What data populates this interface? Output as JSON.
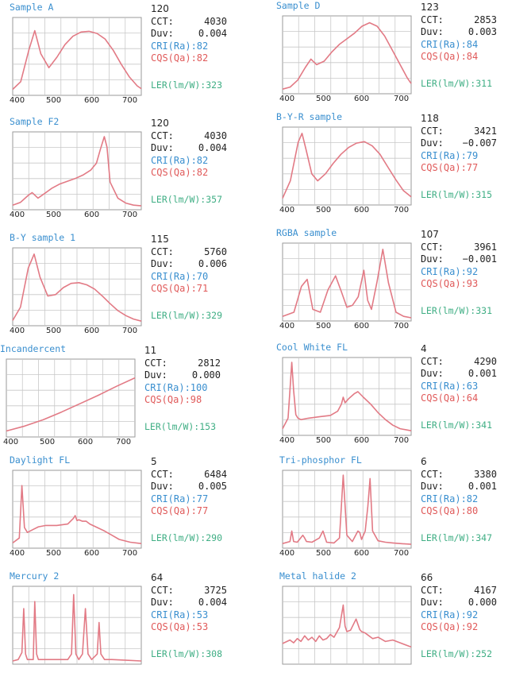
{
  "chart_data": [
    {
      "type": "line",
      "title": "Sample A",
      "xticks": [
        "400",
        "500",
        "600",
        "700"
      ],
      "xlim": [
        400,
        720
      ],
      "x": [
        400,
        420,
        440,
        455,
        470,
        490,
        510,
        530,
        550,
        570,
        590,
        610,
        630,
        650,
        670,
        690,
        710,
        720
      ],
      "y": [
        0.04,
        0.15,
        0.6,
        0.88,
        0.55,
        0.35,
        0.5,
        0.68,
        0.8,
        0.86,
        0.87,
        0.84,
        0.76,
        0.6,
        0.4,
        0.22,
        0.09,
        0.05
      ],
      "index": "120",
      "cct": "4030",
      "duv": "0.004",
      "cri": "CRI(Ra):82",
      "cqs": "CQS(Qa):82",
      "ler": "LER(lm/W):323"
    },
    {
      "type": "line",
      "title": "Sample D",
      "xticks": [
        "400",
        "500",
        "600",
        "700"
      ],
      "xlim": [
        380,
        720
      ],
      "x": [
        380,
        400,
        420,
        440,
        455,
        470,
        490,
        510,
        530,
        550,
        570,
        590,
        610,
        630,
        650,
        670,
        690,
        710,
        720
      ],
      "y": [
        0.02,
        0.05,
        0.15,
        0.33,
        0.45,
        0.37,
        0.42,
        0.55,
        0.66,
        0.74,
        0.82,
        0.92,
        0.97,
        0.92,
        0.78,
        0.58,
        0.38,
        0.18,
        0.1
      ],
      "index": "123",
      "cct": "2853",
      "duv": "0.003",
      "cri": "CRI(Ra):84",
      "cqs": "CQS(Qa):84",
      "ler": "LER(lm/W):311"
    },
    {
      "type": "line",
      "title": "Sample F2",
      "xticks": [
        "400",
        "500",
        "600",
        "700"
      ],
      "xlim": [
        390,
        720
      ],
      "x": [
        390,
        410,
        430,
        440,
        455,
        470,
        490,
        510,
        530,
        550,
        570,
        590,
        605,
        615,
        625,
        632,
        640,
        660,
        680,
        700,
        720
      ],
      "y": [
        0.02,
        0.06,
        0.16,
        0.2,
        0.12,
        0.18,
        0.26,
        0.32,
        0.36,
        0.4,
        0.45,
        0.52,
        0.62,
        0.82,
        1.0,
        0.85,
        0.35,
        0.12,
        0.05,
        0.02,
        0.01
      ],
      "index": "120",
      "cct": "4030",
      "duv": "0.004",
      "cri": "CRI(Ra):82",
      "cqs": "CQS(Qa):82",
      "ler": "LER(lm/W):357"
    },
    {
      "type": "line",
      "title": "B-Y-R sample",
      "xticks": [
        "400",
        "500",
        "600",
        "700"
      ],
      "xlim": [
        400,
        730
      ],
      "x": [
        400,
        420,
        440,
        450,
        460,
        475,
        490,
        510,
        530,
        550,
        570,
        590,
        610,
        630,
        650,
        670,
        690,
        710,
        730
      ],
      "y": [
        0.05,
        0.3,
        0.85,
        0.98,
        0.75,
        0.4,
        0.3,
        0.4,
        0.55,
        0.68,
        0.78,
        0.84,
        0.86,
        0.8,
        0.68,
        0.5,
        0.32,
        0.16,
        0.07
      ],
      "index": "118",
      "cct": "3421",
      "duv": "−0.007",
      "cri": "CRI(Ra):79",
      "cqs": "CQS(Qa):77",
      "ler": "LER(lm/W):315"
    },
    {
      "type": "line",
      "title": "B-Y sample 1",
      "xticks": [
        "400",
        "500",
        "600",
        "700"
      ],
      "xlim": [
        390,
        720
      ],
      "x": [
        390,
        410,
        430,
        445,
        460,
        480,
        500,
        520,
        540,
        560,
        580,
        600,
        620,
        640,
        660,
        680,
        700,
        720
      ],
      "y": [
        0.03,
        0.22,
        0.78,
        0.98,
        0.65,
        0.38,
        0.4,
        0.5,
        0.56,
        0.57,
        0.54,
        0.48,
        0.38,
        0.27,
        0.17,
        0.1,
        0.05,
        0.02
      ],
      "index": "115",
      "cct": "5760",
      "duv": "0.006",
      "cri": "CRI(Ra):70",
      "cqs": "CQS(Qa):71",
      "ler": "LER(lm/W):329"
    },
    {
      "type": "line",
      "title": "RGBA sample",
      "xticks": [
        "400",
        "500",
        "600",
        "700"
      ],
      "xlim": [
        390,
        730
      ],
      "x": [
        390,
        420,
        440,
        455,
        470,
        490,
        510,
        530,
        545,
        560,
        575,
        590,
        605,
        615,
        625,
        640,
        655,
        670,
        690,
        710,
        730
      ],
      "y": [
        0.02,
        0.08,
        0.45,
        0.55,
        0.12,
        0.08,
        0.4,
        0.6,
        0.38,
        0.15,
        0.18,
        0.3,
        0.68,
        0.25,
        0.12,
        0.52,
        0.98,
        0.5,
        0.08,
        0.02,
        0.0
      ],
      "index": "107",
      "cct": "3961",
      "duv": "−0.001",
      "cri": "CRI(Ra):92",
      "cqs": "CQS(Qa):93",
      "ler": "LER(lm/W):331"
    },
    {
      "type": "line",
      "title": "Incandercent",
      "xticks": [
        "400",
        "500",
        "600",
        "700"
      ],
      "xlim": [
        380,
        730
      ],
      "x": [
        380,
        430,
        480,
        530,
        580,
        630,
        680,
        730
      ],
      "y": [
        0.04,
        0.11,
        0.2,
        0.31,
        0.43,
        0.55,
        0.68,
        0.8
      ],
      "index": "11",
      "cct": "2812",
      "duv": "0.000",
      "cri": "CRI(Ra):100",
      "cqs": "CQS(Qa):98",
      "ler": "LER(lm/W):153"
    },
    {
      "type": "line",
      "title": "Cool White FL",
      "xticks": [
        "400",
        "500",
        "600",
        "700"
      ],
      "xlim": [
        380,
        730
      ],
      "x": [
        380,
        395,
        400,
        405,
        410,
        416,
        422,
        430,
        450,
        480,
        510,
        530,
        540,
        545,
        550,
        560,
        575,
        585,
        600,
        620,
        640,
        660,
        680,
        700,
        730
      ],
      "y": [
        0.05,
        0.2,
        0.6,
        1.0,
        0.6,
        0.25,
        0.2,
        0.18,
        0.2,
        0.22,
        0.24,
        0.3,
        0.4,
        0.5,
        0.42,
        0.48,
        0.55,
        0.58,
        0.5,
        0.4,
        0.28,
        0.18,
        0.1,
        0.05,
        0.02
      ],
      "index": "4",
      "cct": "4290",
      "duv": "0.001",
      "cri": "CRI(Ra):63",
      "cqs": "CQS(Qa):64",
      "ler": "LER(lm/W):341"
    },
    {
      "type": "line",
      "title": "Daylight FL",
      "xticks": [
        "400",
        "500",
        "600",
        "700"
      ],
      "xlim": [
        380,
        730
      ],
      "x": [
        380,
        398,
        405,
        412,
        420,
        435,
        450,
        470,
        500,
        530,
        545,
        550,
        555,
        560,
        570,
        580,
        590,
        610,
        630,
        650,
        670,
        700,
        730
      ],
      "y": [
        0.03,
        0.1,
        0.85,
        0.25,
        0.18,
        0.22,
        0.26,
        0.28,
        0.28,
        0.3,
        0.38,
        0.42,
        0.35,
        0.36,
        0.34,
        0.34,
        0.3,
        0.25,
        0.2,
        0.14,
        0.08,
        0.04,
        0.02
      ],
      "index": "5",
      "cct": "6484",
      "duv": "0.005",
      "cri": "CRI(Ra):77",
      "cqs": "CQS(Qa):77",
      "ler": "LER(lm/W):290"
    },
    {
      "type": "line",
      "title": "Tri-phosphor FL",
      "xticks": [
        "400",
        "500",
        "600",
        "700"
      ],
      "xlim": [
        380,
        730
      ],
      "x": [
        380,
        400,
        405,
        410,
        420,
        435,
        440,
        445,
        460,
        480,
        490,
        495,
        500,
        520,
        535,
        545,
        555,
        570,
        585,
        590,
        595,
        605,
        612,
        618,
        625,
        640,
        660,
        680,
        700,
        730
      ],
      "y": [
        0.02,
        0.05,
        0.2,
        0.05,
        0.04,
        0.14,
        0.1,
        0.05,
        0.04,
        0.1,
        0.2,
        0.12,
        0.04,
        0.03,
        0.1,
        1.0,
        0.14,
        0.05,
        0.2,
        0.18,
        0.08,
        0.2,
        0.55,
        0.95,
        0.2,
        0.06,
        0.04,
        0.03,
        0.02,
        0.01
      ],
      "index": "6",
      "cct": "3380",
      "duv": "0.001",
      "cri": "CRI(Ra):82",
      "cqs": "CQS(Qa):80",
      "ler": "LER(lm/W):347"
    },
    {
      "type": "line",
      "title": "Mercury 2",
      "xticks": [],
      "xlim": [
        380,
        730
      ],
      "x": [
        380,
        395,
        405,
        410,
        415,
        420,
        436,
        440,
        445,
        450,
        470,
        500,
        530,
        540,
        546,
        552,
        560,
        570,
        578,
        585,
        595,
        610,
        615,
        620,
        630,
        650,
        690,
        730
      ],
      "y": [
        0.0,
        0.02,
        0.12,
        0.75,
        0.1,
        0.02,
        0.02,
        0.85,
        0.1,
        0.02,
        0.02,
        0.02,
        0.02,
        0.1,
        0.95,
        0.1,
        0.02,
        0.1,
        0.75,
        0.1,
        0.02,
        0.1,
        0.55,
        0.1,
        0.02,
        0.02,
        0.01,
        0.0
      ],
      "index": "64",
      "cct": "3725",
      "duv": "0.004",
      "cri": "CRI(Ra):53",
      "cqs": "CQS(Qa):53",
      "ler": "LER(lm/W):308"
    },
    {
      "type": "line",
      "title": "Metal halide 2",
      "xticks": [],
      "xlim": [
        380,
        730
      ],
      "x": [
        380,
        400,
        410,
        420,
        430,
        440,
        450,
        460,
        470,
        480,
        490,
        500,
        510,
        520,
        535,
        545,
        550,
        555,
        565,
        580,
        590,
        595,
        605,
        615,
        625,
        640,
        660,
        680,
        700,
        730
      ],
      "y": [
        0.25,
        0.3,
        0.26,
        0.32,
        0.28,
        0.36,
        0.3,
        0.34,
        0.28,
        0.36,
        0.3,
        0.32,
        0.38,
        0.34,
        0.48,
        0.8,
        0.5,
        0.42,
        0.44,
        0.6,
        0.45,
        0.42,
        0.4,
        0.36,
        0.32,
        0.34,
        0.28,
        0.3,
        0.26,
        0.2
      ],
      "index": "66",
      "cct": "4167",
      "duv": "0.000",
      "cri": "CRI(Ra):92",
      "cqs": "CQS(Qa):92",
      "ler": "LER(lm/W):252"
    }
  ],
  "labels": {
    "cct": "CCT:",
    "duv": "Duv:"
  },
  "colors": {
    "line": "#e27a85",
    "grid": "#c8c8c8",
    "frame": "#9a9a9a",
    "title": "#3a8fcf",
    "cri": "#3a8fcf",
    "cqs": "#e05a5a",
    "ler": "#3fae84"
  }
}
